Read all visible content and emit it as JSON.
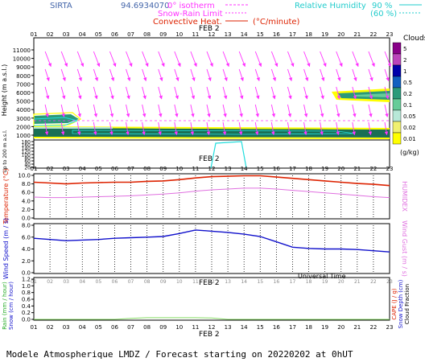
{
  "header": {
    "site": "SIRTA",
    "coords": "94.6934070",
    "isotherm_label": "0° isotherm",
    "snow_rain_label": "Snow-Rain Limit",
    "convective_label": "Convective Heat.",
    "convective_unit": "(°C/minute)",
    "rh_label": "Relative Humidity",
    "rh_90": "90 %",
    "rh_60": "(60 %)"
  },
  "time_axis": {
    "hours": [
      "01",
      "02",
      "03",
      "04",
      "05",
      "06",
      "07",
      "08",
      "09",
      "10",
      "11",
      "12",
      "13",
      "14",
      "15",
      "16",
      "17",
      "18",
      "19",
      "20",
      "21",
      "22",
      "23"
    ],
    "date_label": "FEB  2",
    "xlabel": "Universal Time"
  },
  "footer": "Modele Atmospherique LMDZ / Forecast starting on 20220202 at 0hUT",
  "colors": {
    "wind": "#ff33ff",
    "temperature": "#dd2200",
    "humidex": "#e070e0",
    "windspeed": "#1111cc",
    "cyan": "#22dddd",
    "rain": "#88dd66"
  },
  "chart_data": [
    {
      "type": "heatmap",
      "panel": "cloud-profile",
      "ylabel": "Height (m a.s.l.)",
      "ylabel_low": "Up to 200 m a.s.l.",
      "yticks_high": [
        1000,
        2000,
        3000,
        4000,
        5000,
        6000,
        7000,
        8000,
        9000,
        10000,
        11000
      ],
      "yticks_low": [
        20,
        40,
        60,
        80,
        100,
        120,
        140,
        160,
        180
      ],
      "legend_title": "Clouds",
      "legend_unit": "(g/kg)",
      "legend_levels": [
        "5",
        "2",
        "1",
        "0.5",
        "0.2",
        "0.1",
        "0.05",
        "0.02",
        "0.01"
      ],
      "legend_colors": [
        "#880088",
        "#bb44bb",
        "#0000aa",
        "#1060c0",
        "#2b9a7a",
        "#66cc99",
        "#b8e8d8",
        "#f0f070",
        "#ffff00"
      ]
    },
    {
      "type": "line",
      "panel": "temperature",
      "ylabel": "Temperature (°C)",
      "ylabel_right": "HUMIDEX",
      "ylim": [
        0,
        10
      ],
      "yticks": [
        "0.0",
        "2.0",
        "4.0",
        "6.0",
        "8.0",
        "10.0"
      ],
      "series": [
        {
          "name": "Temperature",
          "values": [
            8.4,
            8.2,
            8.0,
            8.2,
            8.3,
            8.4,
            8.4,
            8.6,
            8.7,
            9.0,
            9.4,
            9.7,
            9.8,
            9.9,
            9.9,
            9.6,
            9.3,
            9.0,
            8.7,
            8.4,
            8.1,
            7.9,
            7.6
          ]
        },
        {
          "name": "HUMIDEX",
          "values": [
            4.9,
            4.8,
            4.8,
            4.9,
            5.0,
            5.1,
            5.2,
            5.4,
            5.6,
            5.9,
            6.3,
            6.6,
            6.8,
            7.0,
            7.0,
            6.8,
            6.5,
            6.2,
            5.9,
            5.6,
            5.3,
            5.0,
            4.8
          ]
        }
      ]
    },
    {
      "type": "line",
      "panel": "wind",
      "ylabel": "Wind Speed (m / s)",
      "ylabel_right": "Wind Gust (m / s)",
      "ylim": [
        0,
        8
      ],
      "yticks": [
        "0.0",
        "2.0",
        "4.0",
        "6.0",
        "8.0"
      ],
      "series": [
        {
          "name": "Wind Speed",
          "values": [
            5.8,
            5.6,
            5.4,
            5.5,
            5.6,
            5.8,
            5.9,
            6.0,
            6.1,
            6.6,
            7.2,
            7.0,
            6.8,
            6.5,
            6.1,
            5.2,
            4.3,
            4.1,
            4.0,
            4.0,
            3.9,
            3.7,
            3.5
          ]
        }
      ]
    },
    {
      "type": "bar",
      "panel": "precipitation",
      "ylabel": "Rain (mm / hour)",
      "ylabel2": "Snow (cm / hour)",
      "ylabel_right": "CAPE (J / g)",
      "ylabel_right2": "Snow Depth (cm)",
      "ylabel_right3": "Cloud Fraction",
      "ylim": [
        0,
        1
      ],
      "yticks": [
        "0.0",
        "0.2",
        "0.4",
        "0.6",
        "0.8",
        "1.0",
        "1.2"
      ],
      "series": [
        {
          "name": "Rain",
          "values": [
            0,
            0,
            0,
            0,
            0,
            0,
            0.03,
            0.05,
            0.05,
            0.05,
            0.05,
            0.04,
            0,
            0,
            0,
            0,
            0,
            0,
            0,
            0,
            0,
            0,
            0
          ]
        }
      ]
    }
  ]
}
